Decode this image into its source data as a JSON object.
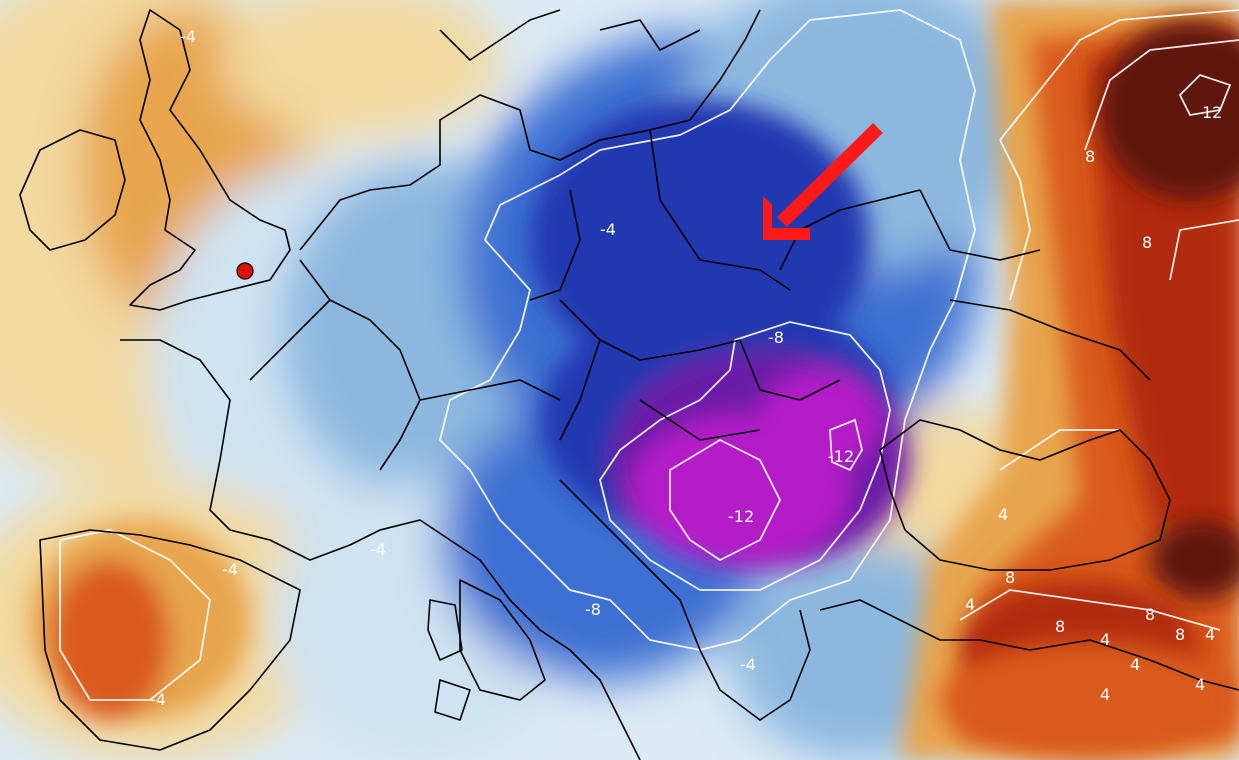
{
  "map": {
    "contour_labels": [
      "-4",
      "-8",
      "-12",
      "-12",
      "-8",
      "-4",
      "-4",
      "-4",
      "-4",
      "-4",
      "8",
      "12",
      "8",
      "4",
      "8",
      "8",
      "8",
      "4",
      "4",
      "8",
      "4",
      "4",
      "4",
      "4"
    ],
    "palette": {
      "warm_light": "#f2d9a0",
      "warm": "#e8a54d",
      "orange": "#d95a1e",
      "red": "#b22a10",
      "dark_red": "#5e1208",
      "cold_light": "#cfe3f2",
      "cold": "#8cb8e0",
      "blue": "#3c6fd2",
      "deep_blue": "#2238b0",
      "purple": "#6a1aa8",
      "magenta": "#b41fc8",
      "marker": "#e01010",
      "arrow": "#ff1a1a",
      "coastline": "#000000",
      "contour": "#ffffff"
    },
    "markers": [
      {
        "icon": "red-dot-marker"
      }
    ],
    "annotations": [
      {
        "icon": "red-arrow-pointer"
      }
    ]
  }
}
